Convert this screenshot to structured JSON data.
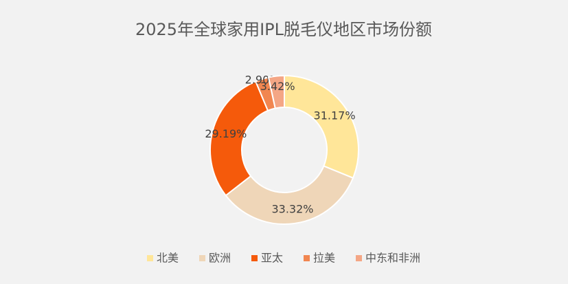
{
  "chart_data": {
    "type": "donut",
    "title": "2025年全球家用IPL脱毛仪地区市场份额",
    "categories": [
      "北美",
      "欧洲",
      "亚太",
      "拉美",
      "中东和非洲"
    ],
    "values": [
      31.17,
      33.32,
      29.19,
      2.9,
      3.42
    ],
    "value_labels": [
      "31.17%",
      "33.32%",
      "29.19%",
      "2.90%",
      "3.42%"
    ],
    "colors": [
      "#FFE699",
      "#EFD6B8",
      "#F55A0B",
      "#F18650",
      "#F4A685"
    ],
    "legend": "bottom"
  }
}
